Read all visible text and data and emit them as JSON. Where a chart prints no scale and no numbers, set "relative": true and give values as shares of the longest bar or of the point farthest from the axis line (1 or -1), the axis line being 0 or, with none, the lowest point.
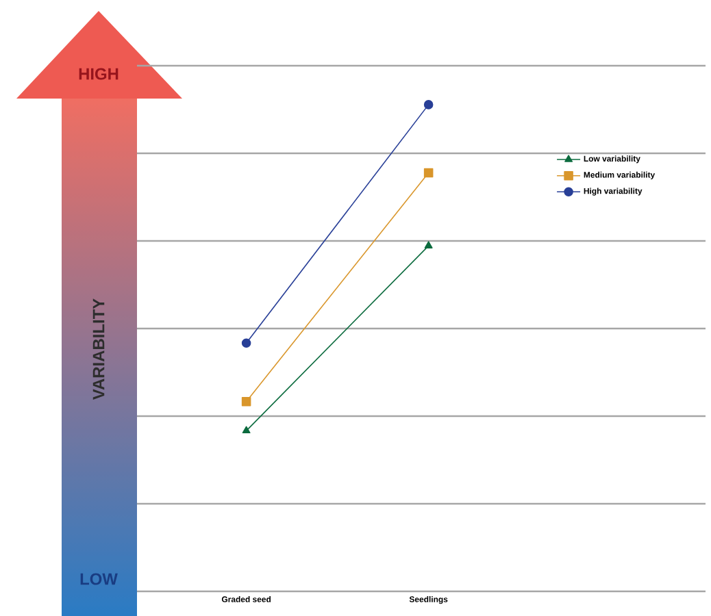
{
  "chart_data": {
    "type": "line",
    "categories": [
      "Graded seed",
      "Seedlings"
    ],
    "relative": true,
    "grid": "y",
    "legend": "right",
    "line_style": "solid",
    "annotations": [
      "HIGH",
      "VARIABILITY",
      "LOW"
    ],
    "series": [
      {
        "name": "Low variability",
        "color": "#0b6b3e",
        "marker": "triangle",
        "values": [
          0.33,
          0.71
        ]
      },
      {
        "name": "Medium variability",
        "color": "#d9962b",
        "marker": "square",
        "values": [
          0.39,
          0.86
        ]
      },
      {
        "name": "High variability",
        "color": "#283f97",
        "marker": "circle",
        "values": [
          0.51,
          1
        ]
      }
    ]
  }
}
